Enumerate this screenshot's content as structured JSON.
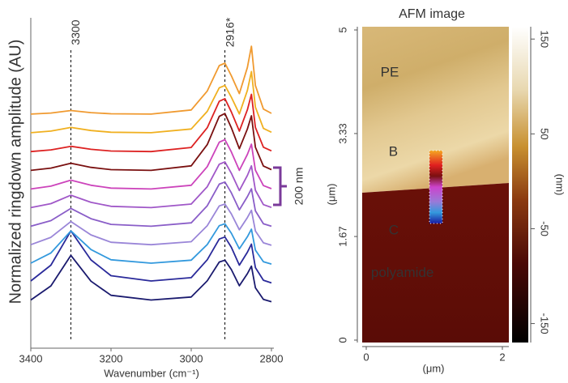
{
  "chart_data": [
    {
      "type": "line",
      "xlabel": "Wavenumber (cm⁻¹)",
      "ylabel": "Normalized ringdown amplitude (AU)",
      "xlim": [
        3400,
        2800
      ],
      "xticks": [
        3400,
        3200,
        3000,
        2800
      ],
      "ylim": [
        0,
        17
      ],
      "vlines": [
        {
          "value": 3300,
          "label": "3300"
        },
        {
          "value": 2916,
          "label": "2916*"
        }
      ],
      "scale_bar": {
        "label": "200 nm",
        "color": "#7a3a9a"
      },
      "x": [
        3400,
        3350,
        3300,
        3250,
        3200,
        3100,
        3000,
        2960,
        2930,
        2916,
        2900,
        2880,
        2860,
        2850,
        2840,
        2820,
        2800
      ],
      "series": [
        {
          "color": "#1a1a6e",
          "values": [
            2.13,
            2.88,
            4.5,
            3.13,
            2.38,
            2.13,
            2.29,
            3.15,
            4.15,
            4.25,
            3.75,
            2.89,
            3.53,
            3.93,
            2.78,
            2.16,
            2.04
          ]
        },
        {
          "color": "#2a2a9a",
          "values": [
            3.14,
            3.98,
            5.8,
            4.26,
            3.42,
            3.14,
            3.32,
            4.27,
            5.37,
            5.48,
            4.93,
            3.98,
            4.67,
            5.1,
            3.85,
            3.18,
            3.04
          ]
        },
        {
          "color": "#3399dd",
          "values": [
            4.09,
            4.63,
            5.8,
            4.81,
            4.27,
            4.09,
            4.25,
            5.08,
            6.08,
            6.18,
            5.68,
            4.85,
            5.49,
            5.89,
            4.78,
            4.16,
            4.04
          ]
        },
        {
          "color": "#9a86d8",
          "values": [
            5.07,
            5.46,
            6.3,
            5.59,
            5.2,
            5.07,
            5.23,
            6.08,
            7.13,
            7.23,
            6.71,
            5.86,
            6.51,
            6.9,
            5.8,
            5.17,
            5.04
          ]
        },
        {
          "color": "#8a5ec8",
          "values": [
            6.05,
            6.35,
            7,
            6.45,
            6.15,
            6.05,
            6.23,
            7.14,
            8.29,
            8.4,
            7.83,
            6.92,
            7.62,
            8.04,
            6.87,
            6.18,
            6.05
          ]
        },
        {
          "color": "#a058c8",
          "values": [
            7.04,
            7.25,
            7.7,
            7.32,
            7.11,
            7.04,
            7.23,
            8.15,
            9.35,
            9.47,
            8.87,
            7.95,
            8.75,
            9.26,
            7.96,
            7.2,
            7.05
          ]
        },
        {
          "color": "#cc44bb",
          "values": [
            8.03,
            8.18,
            8.5,
            8.23,
            8.08,
            8.03,
            8.23,
            9.22,
            10.52,
            10.65,
            10,
            9.02,
            9.87,
            10.41,
            9.03,
            8.21,
            8.05
          ]
        },
        {
          "color": "#7a1010",
          "values": [
            9.02,
            9.14,
            9.4,
            9.18,
            9.06,
            9.02,
            9.26,
            10.39,
            11.89,
            12.04,
            11.29,
            10.17,
            11.22,
            11.92,
            10.25,
            9.25,
            9.06
          ]
        },
        {
          "color": "#dd2222",
          "values": [
            10.02,
            10.11,
            10.3,
            10.14,
            10.05,
            10.02,
            10.24,
            11.29,
            12.69,
            12.83,
            12.13,
            11.11,
            12.24,
            13.06,
            11.3,
            10.25,
            10.06
          ]
        },
        {
          "color": "#f0b020",
          "values": [
            11.02,
            11.11,
            11.3,
            11.14,
            11.05,
            11.02,
            11.22,
            12.16,
            13.41,
            13.53,
            12.91,
            12.02,
            13.27,
            14.27,
            12.38,
            11.25,
            11.05
          ]
        },
        {
          "color": "#f09a30",
          "values": [
            12.01,
            12.07,
            12.2,
            12.09,
            12.03,
            12.01,
            12.23,
            13.24,
            14.59,
            14.72,
            14.05,
            13.1,
            14.49,
            15.62,
            13.53,
            12.28,
            12.05
          ]
        }
      ]
    },
    {
      "type": "image",
      "title": "AFM image",
      "xlabel": "(μm)",
      "ylabel": "(μm)",
      "xlim": [
        0,
        2
      ],
      "xticks": [
        0,
        2
      ],
      "ylim": [
        0,
        5
      ],
      "yticks": [
        0,
        1.67,
        3.33,
        5
      ],
      "colorbar": {
        "lim": [
          -170,
          163
        ],
        "ticks": [
          150,
          50,
          -50,
          -150
        ],
        "label": "(nm)"
      },
      "annotations": [
        {
          "text": "PE",
          "x": 0.21,
          "y": 4.31,
          "color": "#ffffff"
        },
        {
          "text": "B",
          "x": 0.33,
          "y": 3.03,
          "color": "#666666"
        },
        {
          "text": "C",
          "x": 0.33,
          "y": 1.76,
          "color": "#ffff33"
        },
        {
          "text": "polyamide",
          "x": 0.07,
          "y": 1.08,
          "color": "#ffffff"
        }
      ]
    }
  ]
}
